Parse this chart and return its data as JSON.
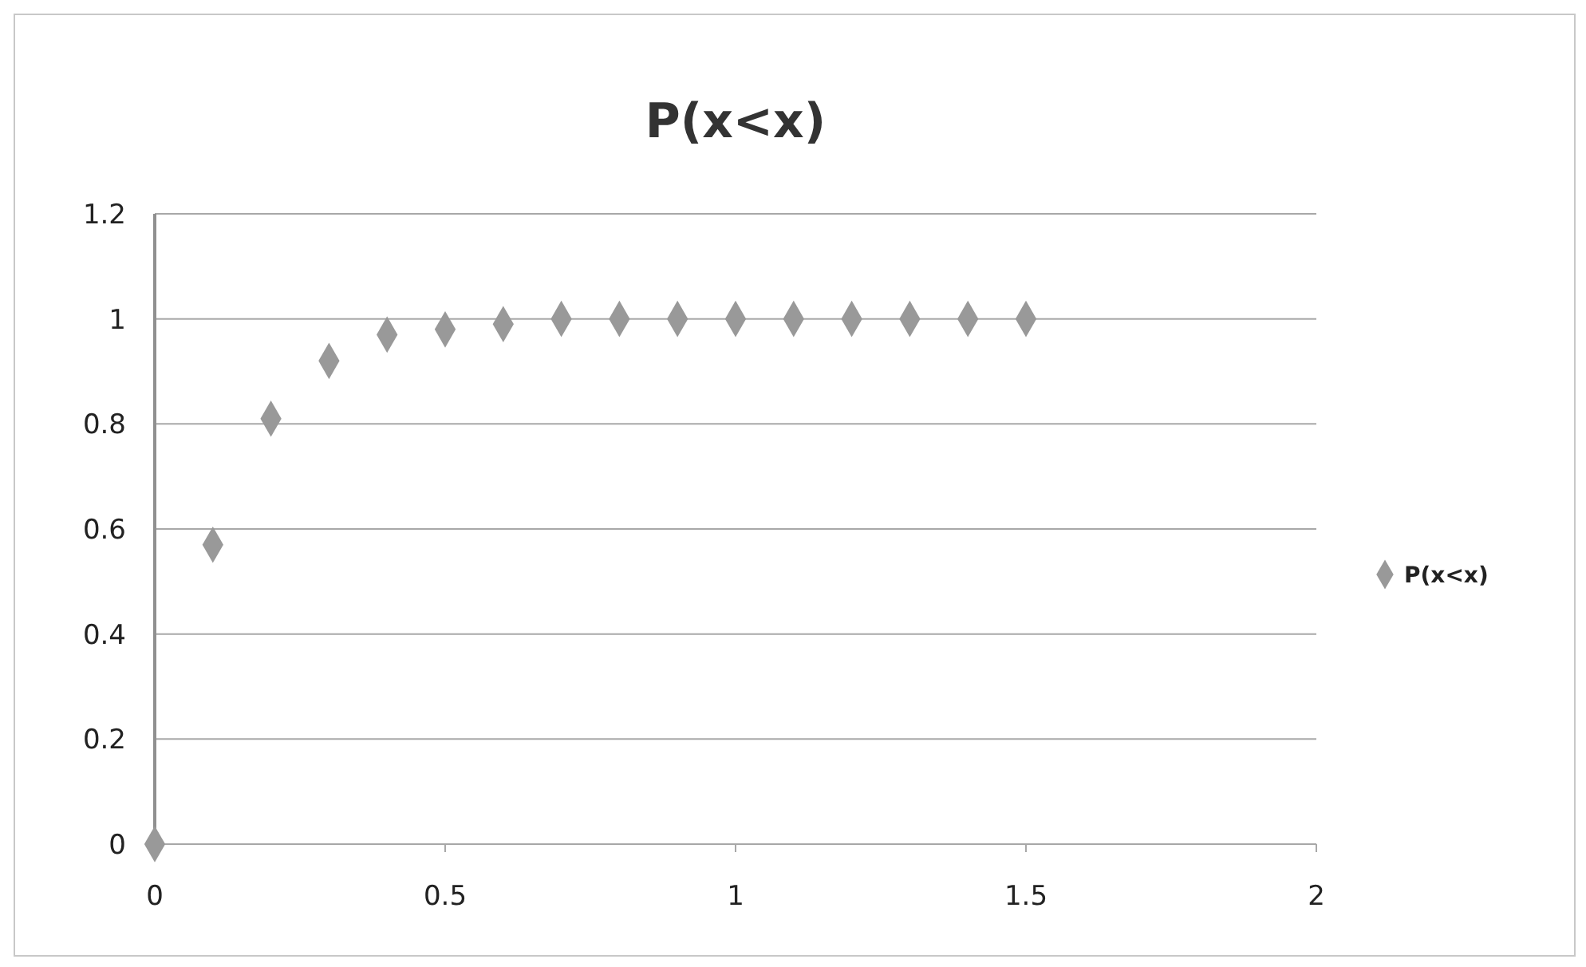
{
  "chart_data": {
    "type": "scatter",
    "title": "P(x<x)",
    "x": [
      0,
      0.1,
      0.2,
      0.3,
      0.4,
      0.5,
      0.6,
      0.7,
      0.8,
      0.9,
      1,
      1.1,
      1.2,
      1.3,
      1.4,
      1.5
    ],
    "series": [
      {
        "name": "P(x<x)",
        "color": "#999999",
        "values": [
          0,
          0.57,
          0.81,
          0.92,
          0.97,
          0.98,
          0.99,
          1,
          1,
          1,
          1,
          1,
          1,
          1,
          1,
          1
        ]
      }
    ],
    "xlim": [
      0,
      2
    ],
    "xticks": [
      0,
      0.5,
      1,
      1.5,
      2
    ],
    "ylim": [
      0,
      1.2
    ],
    "yticks": [
      0,
      0.2,
      0.4,
      0.6,
      0.8,
      1,
      1.2
    ],
    "grid": "y",
    "legend": "right",
    "marker": "diamond"
  }
}
